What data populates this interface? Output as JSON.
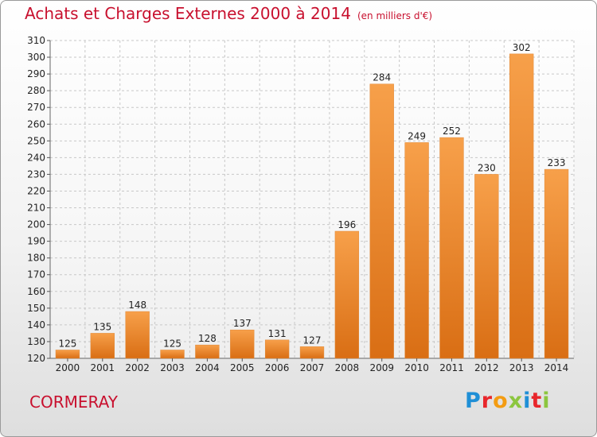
{
  "header": {
    "title": "Achats et Charges Externes 2000 à 2014",
    "subtitle": "(en milliers d'€)"
  },
  "footer": {
    "commune": "CORMERAY",
    "logo_text": "Proxiti"
  },
  "colors": {
    "title": "#c8102e",
    "bar_top": "#f7a04a",
    "bar_bottom": "#d96e14",
    "grid": "#c8c8c8"
  },
  "chart_data": {
    "type": "bar",
    "title": "Achats et Charges Externes 2000 à 2014",
    "subtitle": "(en milliers d'€)",
    "xlabel": "",
    "ylabel": "",
    "categories": [
      "2000",
      "2001",
      "2002",
      "2003",
      "2004",
      "2005",
      "2006",
      "2007",
      "2008",
      "2009",
      "2010",
      "2011",
      "2012",
      "2013",
      "2014"
    ],
    "values": [
      125,
      135,
      148,
      125,
      128,
      137,
      131,
      127,
      196,
      284,
      249,
      252,
      230,
      302,
      233
    ],
    "ylim": [
      120,
      310
    ],
    "ytick_step": 10,
    "grid": true,
    "legend": "none"
  }
}
